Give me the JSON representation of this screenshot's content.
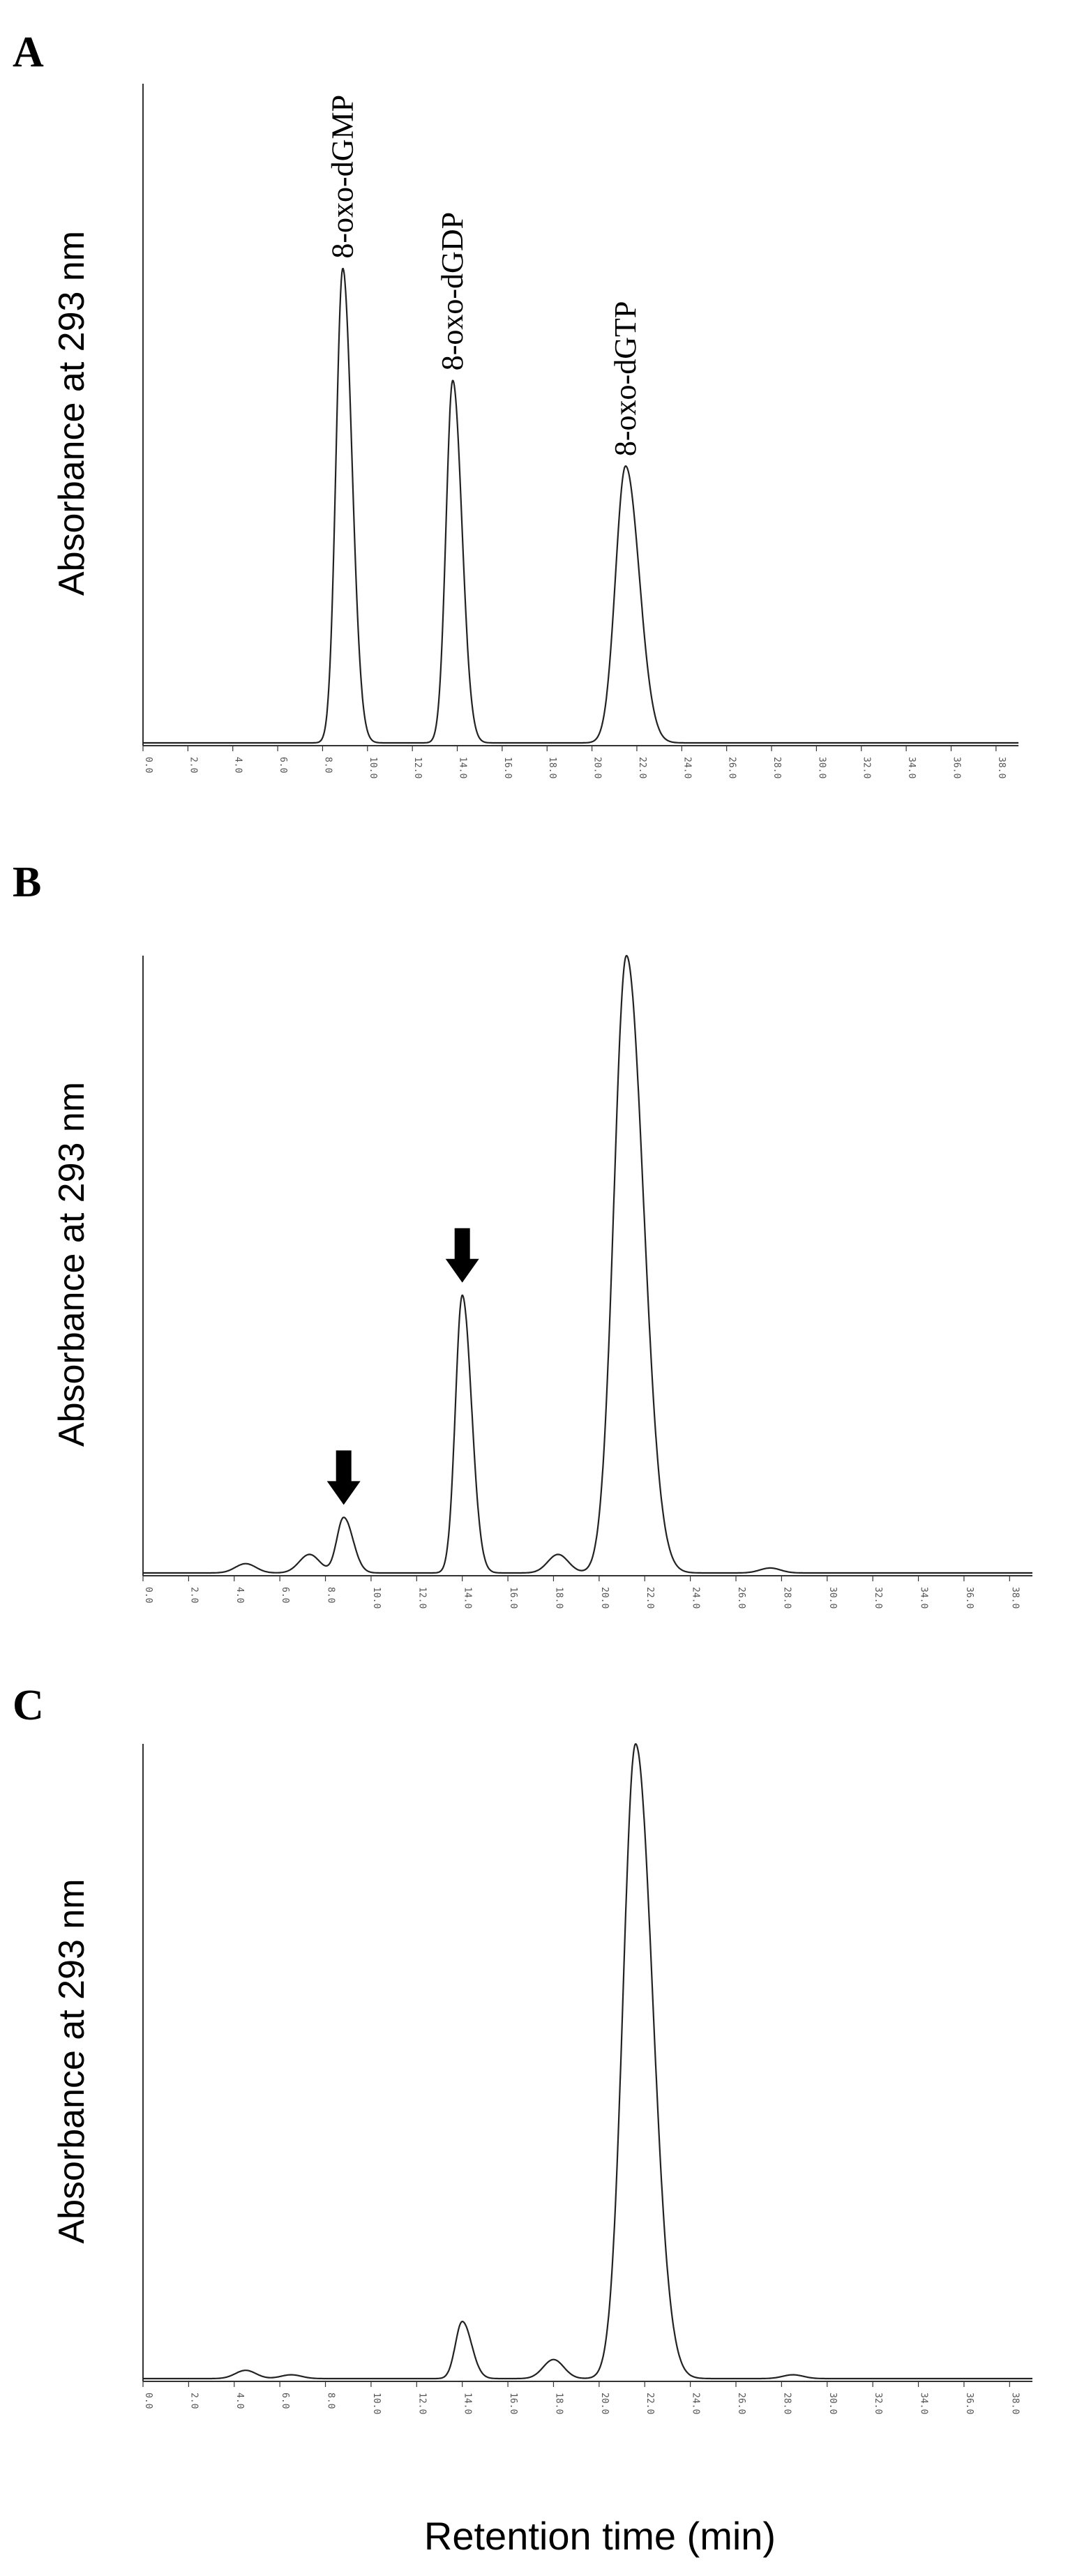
{
  "x_axis_label": "Retention time (min)",
  "chart_data": [
    {
      "panel": "A",
      "type": "line",
      "ylabel": "Absorbance at 293 nm",
      "xlim": [
        0,
        39
      ],
      "ylim": [
        0,
        1
      ],
      "x_ticks": [
        "0.0",
        "2.0",
        "4.0",
        "6.0",
        "8.0",
        "10.0",
        "12.0",
        "14.0",
        "16.0",
        "18.0",
        "20.0",
        "22.0",
        "24.0",
        "26.0",
        "28.0",
        "30.0",
        "32.0",
        "34.0",
        "36.0",
        "38.0"
      ],
      "baseline": 0.0,
      "noise": [],
      "peaks": [
        {
          "rt": 8.9,
          "height": 0.72,
          "label": "8-oxo-dGMP"
        },
        {
          "rt": 13.8,
          "height": 0.55,
          "label": "8-oxo-dGDP"
        },
        {
          "rt": 21.5,
          "height": 0.42,
          "label": "8-oxo-dGTP"
        }
      ],
      "arrows": []
    },
    {
      "panel": "B",
      "type": "line",
      "ylabel": "Absorbance at 293 nm",
      "xlim": [
        0,
        39
      ],
      "ylim": [
        0,
        1
      ],
      "x_ticks": [
        "0.0",
        "2.0",
        "4.0",
        "6.0",
        "8.0",
        "10.0",
        "12.0",
        "14.0",
        "16.0",
        "18.0",
        "20.0",
        "22.0",
        "24.0",
        "26.0",
        "28.0",
        "30.0",
        "32.0",
        "34.0",
        "36.0",
        "38.0"
      ],
      "baseline": 0.0,
      "noise": [
        {
          "rt": 4.5,
          "height": 0.015
        },
        {
          "rt": 7.3,
          "height": 0.03
        },
        {
          "rt": 18.2,
          "height": 0.03
        },
        {
          "rt": 27.5,
          "height": 0.008
        }
      ],
      "peaks": [
        {
          "rt": 8.8,
          "height": 0.09,
          "label": ""
        },
        {
          "rt": 14.0,
          "height": 0.45,
          "label": ""
        },
        {
          "rt": 21.2,
          "height": 1.0,
          "label": ""
        }
      ],
      "arrows": [
        8.8,
        14.0
      ]
    },
    {
      "panel": "C",
      "type": "line",
      "ylabel": "Absorbance at 293 nm",
      "xlim": [
        0,
        39
      ],
      "ylim": [
        0,
        1
      ],
      "x_ticks": [
        "0.0",
        "2.0",
        "4.0",
        "6.0",
        "8.0",
        "10.0",
        "12.0",
        "14.0",
        "16.0",
        "18.0",
        "20.0",
        "22.0",
        "24.0",
        "26.0",
        "28.0",
        "30.0",
        "32.0",
        "34.0",
        "36.0",
        "38.0"
      ],
      "baseline": 0.0,
      "noise": [
        {
          "rt": 4.5,
          "height": 0.013
        },
        {
          "rt": 6.5,
          "height": 0.006
        },
        {
          "rt": 18.0,
          "height": 0.03
        },
        {
          "rt": 28.5,
          "height": 0.006
        }
      ],
      "peaks": [
        {
          "rt": 14.0,
          "height": 0.09,
          "label": ""
        },
        {
          "rt": 21.6,
          "height": 1.0,
          "label": ""
        }
      ],
      "arrows": []
    }
  ]
}
